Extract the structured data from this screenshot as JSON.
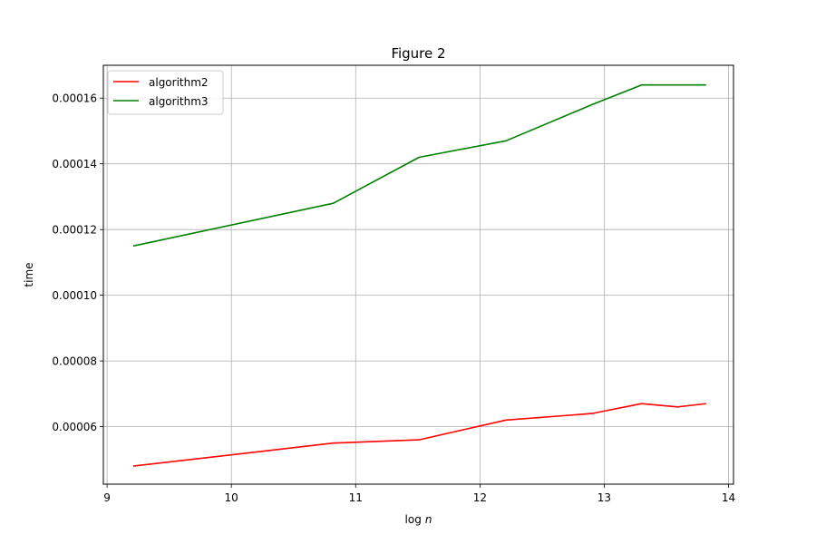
{
  "chart_data": {
    "type": "line",
    "title": "Figure 2",
    "xlabel_text": "log",
    "xlabel_var": "n",
    "ylabel": "time",
    "xlim": [
      8.97,
      14.04
    ],
    "ylim": [
      4.25e-05,
      0.00017
    ],
    "grid": true,
    "legend_position": "upper-left",
    "x_ticks": [
      {
        "value": 9,
        "label": "9"
      },
      {
        "value": 10,
        "label": "10"
      },
      {
        "value": 11,
        "label": "11"
      },
      {
        "value": 12,
        "label": "12"
      },
      {
        "value": 13,
        "label": "13"
      },
      {
        "value": 14,
        "label": "14"
      }
    ],
    "y_ticks": [
      {
        "value": 6e-05,
        "label": "0.00006"
      },
      {
        "value": 8e-05,
        "label": "0.00008"
      },
      {
        "value": 0.0001,
        "label": "0.00010"
      },
      {
        "value": 0.00012,
        "label": "0.00012"
      },
      {
        "value": 0.00014,
        "label": "0.00014"
      },
      {
        "value": 0.00016,
        "label": "0.00016"
      }
    ],
    "series": [
      {
        "name": "algorithm2",
        "color": "#ff0000",
        "x": [
          9.21,
          10.82,
          11.51,
          12.21,
          12.9,
          13.3,
          13.59,
          13.82
        ],
        "y": [
          4.8e-05,
          5.5e-05,
          5.6e-05,
          6.2e-05,
          6.4e-05,
          6.7e-05,
          6.6e-05,
          6.7e-05
        ]
      },
      {
        "name": "algorithm3",
        "color": "#008000",
        "x": [
          9.21,
          10.82,
          11.51,
          12.21,
          12.9,
          13.3,
          13.59,
          13.82
        ],
        "y": [
          0.000115,
          0.000128,
          0.000142,
          0.000147,
          0.000158,
          0.000164,
          0.000164,
          0.000164
        ]
      }
    ]
  }
}
